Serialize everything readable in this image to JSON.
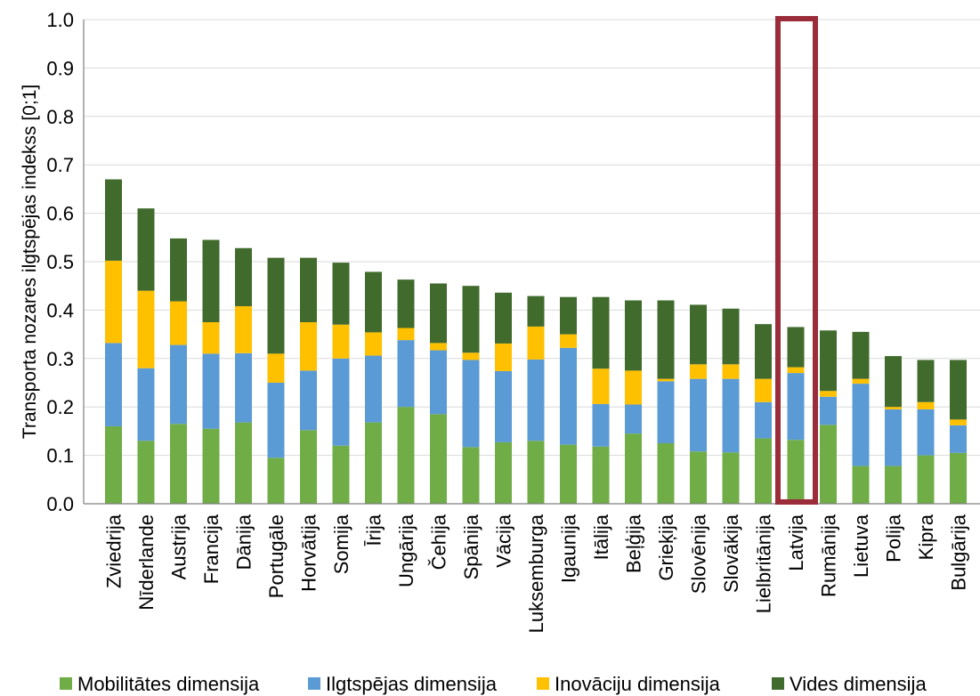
{
  "chart_data": {
    "type": "bar",
    "stacked": true,
    "ylabel": "Transporta nozares ilgtspējas indekss [0;1]",
    "xlabel": "",
    "ylim": [
      0,
      1.0
    ],
    "yticks": [
      "0.0",
      "0.1",
      "0.2",
      "0.3",
      "0.4",
      "0.5",
      "0.6",
      "0.7",
      "0.8",
      "0.9",
      "1.0"
    ],
    "grid": true,
    "legend_position": "bottom",
    "highlight_category": "Latvija",
    "highlight_color": "#9b2d3a",
    "categories": [
      "Zviedrija",
      "Nīderlande",
      "Austrija",
      "Francija",
      "Dānija",
      "Portugāle",
      "Horvātija",
      "Somija",
      "Īrija",
      "Ungārija",
      "Čehija",
      "Spānija",
      "Vācija",
      "Luksemburga",
      "Igaunija",
      "Itālija",
      "Beļģija",
      "Grieķija",
      "Slovēnija",
      "Slovākija",
      "Lielbritānija",
      "Latvija",
      "Rumānija",
      "Lietuva",
      "Polija",
      "Kipra",
      "Bulgārija"
    ],
    "series": [
      {
        "name": "Mobilitātes dimensija",
        "color": "#70ad47",
        "values": [
          0.16,
          0.13,
          0.165,
          0.155,
          0.168,
          0.095,
          0.152,
          0.12,
          0.168,
          0.2,
          0.185,
          0.117,
          0.127,
          0.13,
          0.122,
          0.118,
          0.145,
          0.125,
          0.108,
          0.106,
          0.135,
          0.132,
          0.163,
          0.078,
          0.078,
          0.1,
          0.105
        ]
      },
      {
        "name": "Ilgtspējas dimensija",
        "color": "#5b9bd5",
        "values": [
          0.172,
          0.15,
          0.163,
          0.155,
          0.143,
          0.155,
          0.123,
          0.18,
          0.138,
          0.138,
          0.132,
          0.18,
          0.147,
          0.168,
          0.2,
          0.088,
          0.06,
          0.128,
          0.15,
          0.152,
          0.075,
          0.138,
          0.058,
          0.17,
          0.117,
          0.095,
          0.057
        ]
      },
      {
        "name": "Inovāciju dimensija",
        "color": "#ffc000",
        "values": [
          0.17,
          0.16,
          0.09,
          0.065,
          0.097,
          0.06,
          0.1,
          0.07,
          0.048,
          0.025,
          0.015,
          0.015,
          0.057,
          0.068,
          0.028,
          0.073,
          0.07,
          0.005,
          0.03,
          0.03,
          0.048,
          0.012,
          0.012,
          0.01,
          0.005,
          0.015,
          0.012
        ]
      },
      {
        "name": "Vides dimensija",
        "color": "#416b2d",
        "values": [
          0.168,
          0.17,
          0.13,
          0.17,
          0.12,
          0.198,
          0.133,
          0.128,
          0.125,
          0.1,
          0.123,
          0.138,
          0.105,
          0.063,
          0.077,
          0.148,
          0.145,
          0.162,
          0.123,
          0.115,
          0.113,
          0.083,
          0.125,
          0.097,
          0.105,
          0.087,
          0.123
        ]
      }
    ]
  }
}
